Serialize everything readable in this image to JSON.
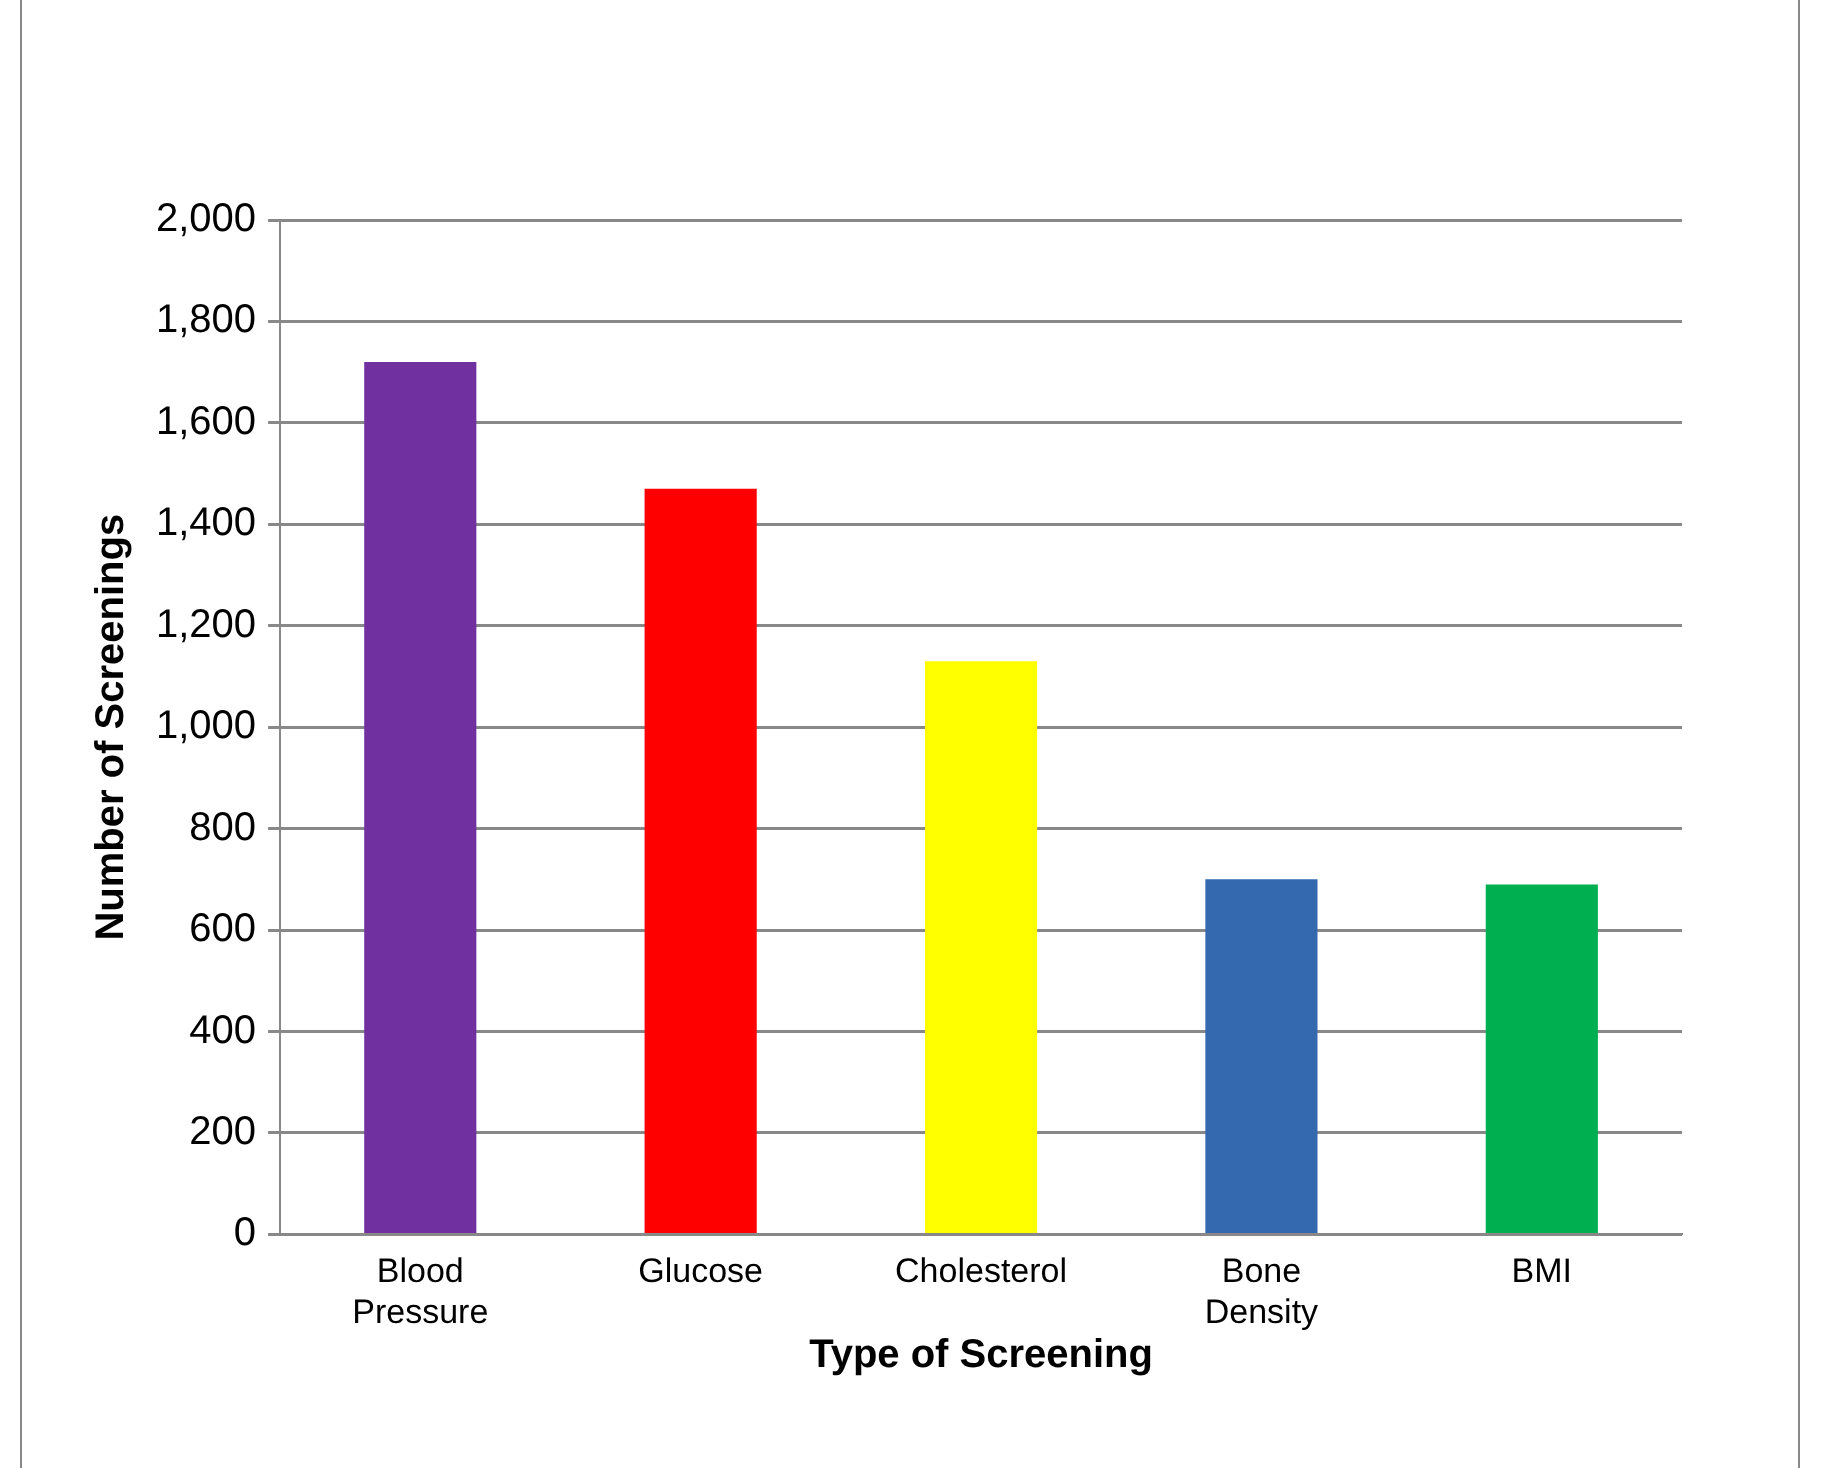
{
  "chart_data": {
    "type": "bar",
    "xlabel": "Type of Screening",
    "ylabel": "Number of Screenings",
    "categories": [
      "Blood Pressure",
      "Glucose",
      "Cholesterol",
      "Bone Density",
      "BMI"
    ],
    "values": [
      1720,
      1470,
      1130,
      700,
      690
    ],
    "colors": [
      "#7030a0",
      "#ff0000",
      "#ffff00",
      "#3469b0",
      "#00b050"
    ],
    "ylim": [
      0,
      2000
    ],
    "yticks": [
      {
        "value": 0,
        "label": "0"
      },
      {
        "value": 200,
        "label": "200"
      },
      {
        "value": 400,
        "label": "400"
      },
      {
        "value": 600,
        "label": "600"
      },
      {
        "value": 800,
        "label": "800"
      },
      {
        "value": 1000,
        "label": "1,000"
      },
      {
        "value": 1200,
        "label": "1,200"
      },
      {
        "value": 1400,
        "label": "1,400"
      },
      {
        "value": 1600,
        "label": "1,600"
      },
      {
        "value": 1800,
        "label": "1,800"
      },
      {
        "value": 2000,
        "label": "2,000"
      }
    ],
    "grid": "y",
    "legend": false
  }
}
